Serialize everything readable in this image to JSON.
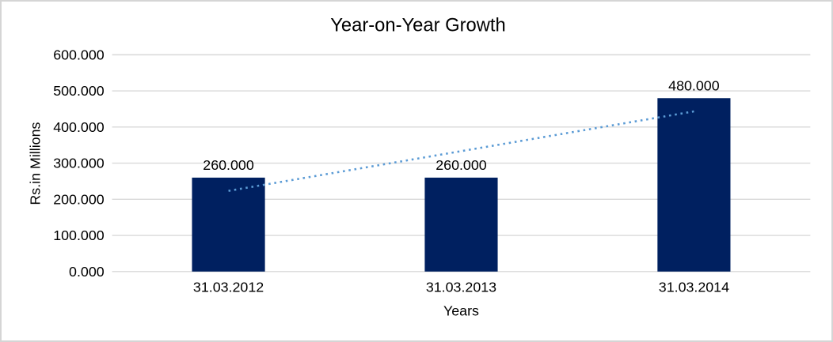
{
  "chart_data": {
    "type": "bar",
    "title": "Year-on-Year Growth",
    "xlabel": "Years",
    "ylabel": "Rs.in Millions",
    "categories": [
      "31.03.2012",
      "31.03.2013",
      "31.03.2014"
    ],
    "values": [
      260,
      260,
      480
    ],
    "data_labels": [
      "260.000",
      "260.000",
      "480.000"
    ],
    "y_ticks": [
      "0.000",
      "100.000",
      "200.000",
      "300.000",
      "400.000",
      "500.000",
      "600.000"
    ],
    "y_tick_values": [
      0,
      100,
      200,
      300,
      400,
      500,
      600
    ],
    "ylim": [
      0,
      600
    ],
    "grid": "horizontal-only",
    "legend": "none",
    "colors": {
      "bar": "#002060",
      "trendline": "#5B9BD5",
      "gridline": "#d9d9d9",
      "axis_line": "#d9d9d9",
      "text": "#000000",
      "background": "#ffffff"
    },
    "trendline": {
      "type": "linear",
      "line_style": "dotted",
      "start_value": 223.33,
      "end_value": 443.33
    }
  }
}
